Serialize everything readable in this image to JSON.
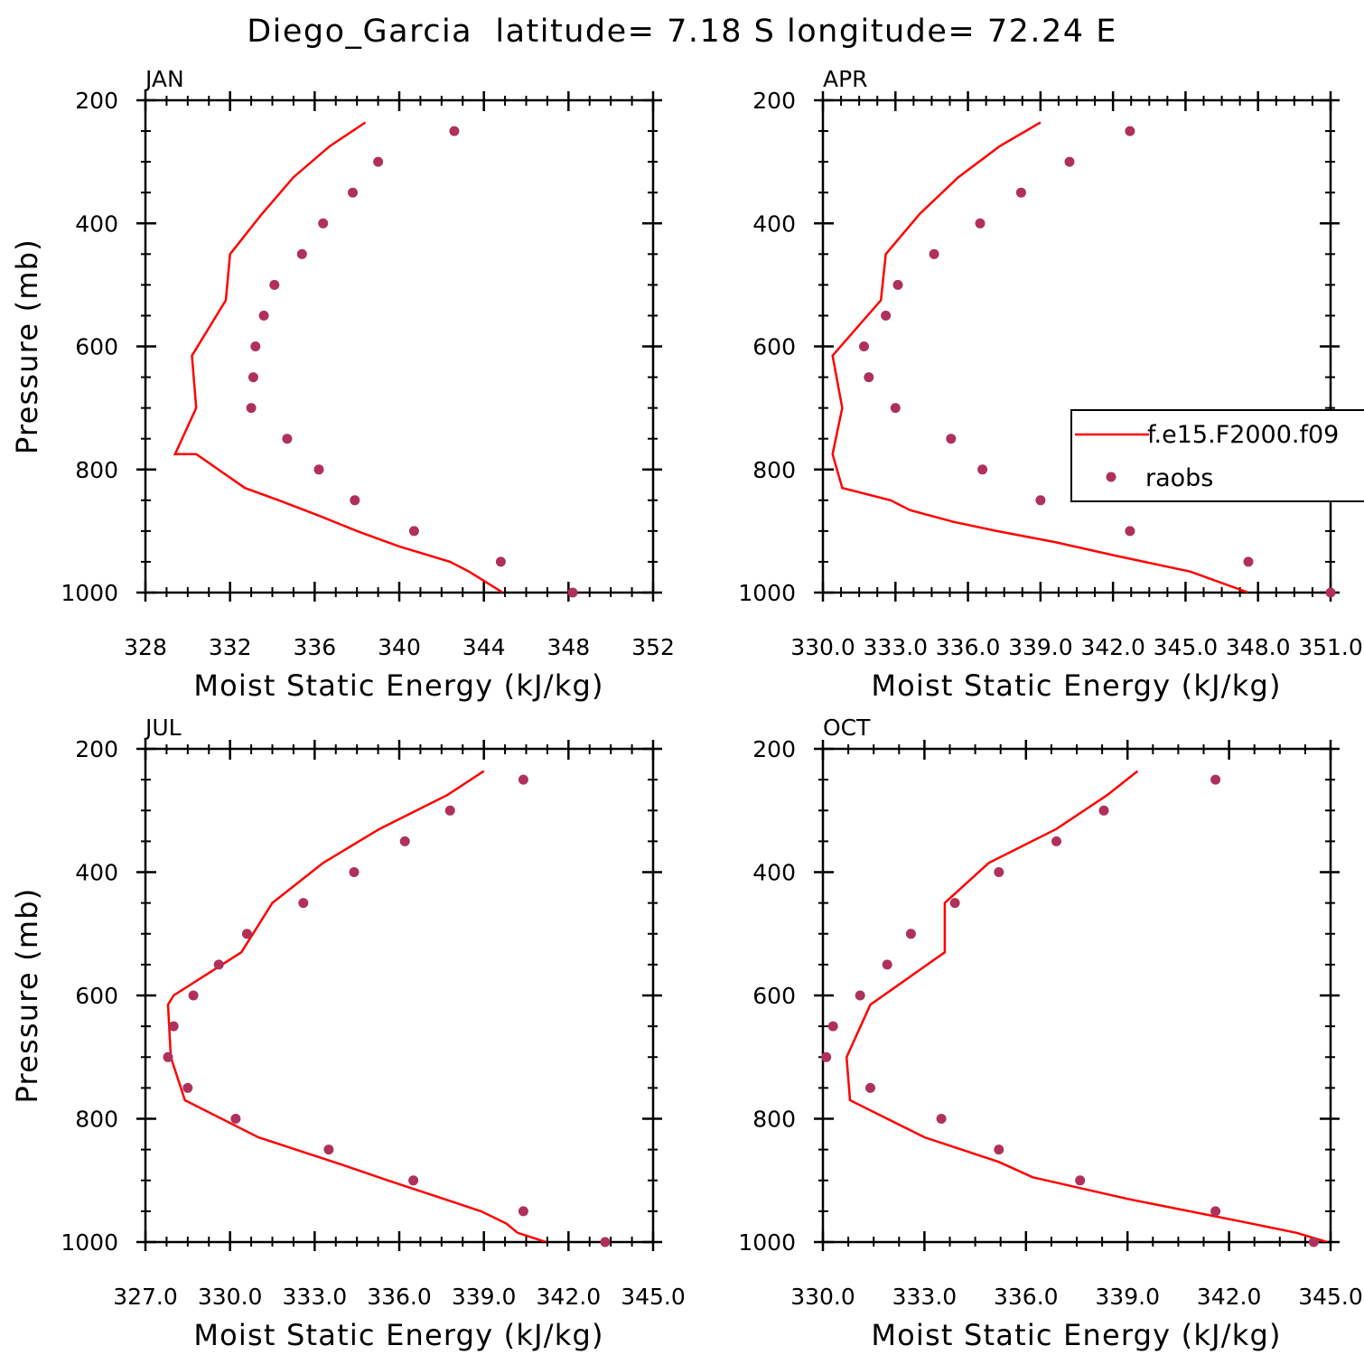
{
  "figure_title": "Diego_Garcia  latitude= 7.18 S longitude= 72.24 E",
  "colors": {
    "model_line": "#ff0000",
    "obs_marker": "#b0305c",
    "axes": "#000000"
  },
  "legend": {
    "model_label": "f.e15.F2000.f09",
    "obs_label": "raobs"
  },
  "chart_data": [
    {
      "type": "line",
      "panel": "JAN",
      "xlabel": "Moist Static Energy (kJ/kg)",
      "ylabel": "Pressure (mb)",
      "xlim": [
        328,
        352
      ],
      "ylim": [
        1000,
        200
      ],
      "xticks": [
        328,
        332,
        336,
        340,
        344,
        348,
        352
      ],
      "xtick_labels": [
        "328",
        "332",
        "336",
        "340",
        "344",
        "348",
        "352"
      ],
      "yticks": [
        200,
        400,
        600,
        800,
        1000
      ],
      "ytick_labels": [
        "200",
        "400",
        "600",
        "800",
        "1000"
      ],
      "grid": false,
      "series": [
        {
          "name": "f.e15.F2000.f09",
          "style": "line",
          "x": [
            344.9,
            343.3,
            342.4,
            340.0,
            338.0,
            336.2,
            334.3,
            332.7,
            330.4,
            329.8,
            329.4,
            330.4,
            330.2,
            331.8,
            332.0,
            333.5,
            335.0,
            336.7,
            338.4
          ],
          "y": [
            1000,
            966,
            950,
            925,
            900,
            875,
            850,
            830,
            775,
            775,
            775,
            700,
            615,
            525,
            450,
            385,
            325,
            275,
            236
          ]
        },
        {
          "name": "raobs",
          "style": "markers",
          "x": [
            348.2,
            344.8,
            340.7,
            337.9,
            336.2,
            334.7,
            333.0,
            333.1,
            333.2,
            333.6,
            334.1,
            335.4,
            336.4,
            337.8,
            339.0,
            342.6
          ],
          "y": [
            1000,
            950,
            900,
            850,
            800,
            750,
            700,
            650,
            600,
            550,
            500,
            450,
            400,
            350,
            300,
            250
          ]
        }
      ]
    },
    {
      "type": "line",
      "panel": "APR",
      "xlabel": "Moist Static Energy (kJ/kg)",
      "ylabel": "",
      "xlim": [
        330.0,
        351.0
      ],
      "ylim": [
        1000,
        200
      ],
      "xticks": [
        330.0,
        333.0,
        336.0,
        339.0,
        342.0,
        345.0,
        348.0,
        351.0
      ],
      "xtick_labels": [
        "330.0",
        "333.0",
        "336.0",
        "339.0",
        "342.0",
        "345.0",
        "348.0",
        "351.0"
      ],
      "yticks": [
        200,
        400,
        600,
        800,
        1000
      ],
      "ytick_labels": [
        "200",
        "400",
        "600",
        "800",
        "1000"
      ],
      "grid": false,
      "legend_position": "right",
      "series": [
        {
          "name": "f.e15.F2000.f09",
          "style": "line",
          "x": [
            347.6,
            345.2,
            342.1,
            339.6,
            337.2,
            335.4,
            333.6,
            332.8,
            330.8,
            330.4,
            330.8,
            330.4,
            332.4,
            332.6,
            334.0,
            335.6,
            337.3,
            339.0
          ],
          "y": [
            1000,
            966,
            940,
            918,
            900,
            885,
            866,
            850,
            830,
            775,
            700,
            615,
            525,
            450,
            385,
            325,
            275,
            236
          ]
        },
        {
          "name": "raobs",
          "style": "markers",
          "x": [
            351.0,
            347.6,
            342.7,
            339.0,
            336.6,
            335.3,
            333.0,
            331.9,
            331.7,
            332.6,
            333.1,
            334.6,
            336.5,
            338.2,
            340.2,
            342.7
          ],
          "y": [
            1000,
            950,
            900,
            850,
            800,
            750,
            700,
            650,
            600,
            550,
            500,
            450,
            400,
            350,
            300,
            250
          ]
        }
      ]
    },
    {
      "type": "line",
      "panel": "JUL",
      "xlabel": "Moist Static Energy (kJ/kg)",
      "ylabel": "Pressure (mb)",
      "xlim": [
        327.0,
        345.0
      ],
      "ylim": [
        1000,
        200
      ],
      "xticks": [
        327.0,
        330.0,
        333.0,
        336.0,
        339.0,
        342.0,
        345.0
      ],
      "xtick_labels": [
        "327.0",
        "330.0",
        "333.0",
        "336.0",
        "339.0",
        "342.0",
        "345.0"
      ],
      "yticks": [
        200,
        400,
        600,
        800,
        1000
      ],
      "ytick_labels": [
        "200",
        "400",
        "600",
        "800",
        "1000"
      ],
      "grid": false,
      "series": [
        {
          "name": "f.e15.F2000.f09",
          "style": "line",
          "x": [
            341.2,
            340.2,
            339.8,
            338.9,
            335.6,
            334.0,
            331.0,
            328.4,
            327.9,
            327.8,
            328.0,
            330.4,
            331.5,
            333.3,
            335.3,
            337.7,
            339.0
          ],
          "y": [
            1000,
            985,
            970,
            950,
            900,
            875,
            830,
            770,
            700,
            615,
            600,
            530,
            450,
            385,
            330,
            275,
            236
          ]
        },
        {
          "name": "raobs",
          "style": "markers",
          "x": [
            343.3,
            340.4,
            336.5,
            333.5,
            330.2,
            328.5,
            327.8,
            328.0,
            328.7,
            329.6,
            330.6,
            332.6,
            334.4,
            336.2,
            337.8,
            340.4
          ],
          "y": [
            1000,
            950,
            900,
            850,
            800,
            750,
            700,
            650,
            600,
            550,
            500,
            450,
            400,
            350,
            300,
            250
          ]
        }
      ]
    },
    {
      "type": "line",
      "panel": "OCT",
      "xlabel": "Moist Static Energy (kJ/kg)",
      "ylabel": "",
      "xlim": [
        330.0,
        345.0
      ],
      "ylim": [
        1000,
        200
      ],
      "xticks": [
        330.0,
        333.0,
        336.0,
        339.0,
        342.0,
        345.0
      ],
      "xtick_labels": [
        "330.0",
        "333.0",
        "336.0",
        "339.0",
        "342.0",
        "345.0"
      ],
      "yticks": [
        200,
        400,
        600,
        800,
        1000
      ],
      "ytick_labels": [
        "200",
        "400",
        "600",
        "800",
        "1000"
      ],
      "grid": false,
      "series": [
        {
          "name": "f.e15.F2000.f09",
          "style": "line",
          "x": [
            344.9,
            344.0,
            342.3,
            339.0,
            336.2,
            335.2,
            333.0,
            330.8,
            330.7,
            331.4,
            333.6,
            333.6,
            334.9,
            336.9,
            338.4,
            339.3
          ],
          "y": [
            1000,
            985,
            966,
            930,
            895,
            870,
            830,
            770,
            700,
            615,
            530,
            450,
            385,
            330,
            275,
            236
          ]
        },
        {
          "name": "raobs",
          "style": "markers",
          "x": [
            344.5,
            341.6,
            337.6,
            335.2,
            333.5,
            331.4,
            330.1,
            330.3,
            331.1,
            331.9,
            332.6,
            333.9,
            335.2,
            336.9,
            338.3,
            341.6
          ],
          "y": [
            1000,
            950,
            900,
            850,
            800,
            750,
            700,
            650,
            600,
            550,
            500,
            450,
            400,
            350,
            300,
            250
          ]
        }
      ]
    }
  ]
}
